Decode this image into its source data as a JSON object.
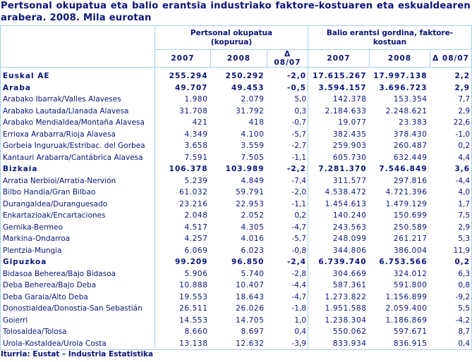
{
  "title": {
    "line1": "Pertsonal okupatua eta balio erantsia industriako faktore-kostuaren eta eskualdearen",
    "line2": "arabera. 2008. Mila eurotan"
  },
  "table": {
    "group_headers": [
      {
        "line1": "Pertsonal okupatua",
        "line2": "(kopurua)"
      },
      {
        "line1": "Balio erantsi gordina, faktore-kostuan",
        "line2": ""
      }
    ],
    "sub_headers": [
      "2007",
      "2008",
      "Δ 08/07",
      "2007",
      "2008",
      "Δ 08/07"
    ],
    "rows": [
      {
        "label": "Euskal AE",
        "bold": true,
        "values": [
          "255.294",
          "250.292",
          "-2,0",
          "17.615.267",
          "17.997.138",
          "2,2"
        ]
      },
      {
        "label": "Araba",
        "bold": true,
        "values": [
          "49.707",
          "49.453",
          "-0,5",
          "3.594.157",
          "3.696.723",
          "2,9"
        ]
      },
      {
        "label": "Arabako Ibarrak/Valles Alaveses",
        "bold": false,
        "values": [
          "1.980",
          "2.079",
          "5,0",
          "142.378",
          "153.354",
          "7,7"
        ]
      },
      {
        "label": "Arabako Lautada/Llanada Alavesa",
        "bold": false,
        "values": [
          "31.708",
          "31.792",
          "0,3",
          "2.184.633",
          "2.248.621",
          "2,9"
        ]
      },
      {
        "label": "Arabako Mendialdea/Montaña Alavesa",
        "bold": false,
        "values": [
          "421",
          "418",
          "-0,7",
          "19.077",
          "23.383",
          "22,6"
        ]
      },
      {
        "label": "Errioxa Arabarra/Rioja Alavesa",
        "bold": false,
        "values": [
          "4.349",
          "4.100",
          "-5,7",
          "382.435",
          "378.430",
          "-1,0"
        ]
      },
      {
        "label": "Gorbeia Inguruak/Estribac. del Gorbea",
        "bold": false,
        "values": [
          "3.658",
          "3.559",
          "-2,7",
          "259.903",
          "260.487",
          "0,2"
        ]
      },
      {
        "label": "Kantauri Arabarra/Cantábrica Alavesa",
        "bold": false,
        "values": [
          "7.591",
          "7.505",
          "-1,1",
          "605.730",
          "632.449",
          "4,4"
        ]
      },
      {
        "label": "Bizkaia",
        "bold": true,
        "values": [
          "106.378",
          "103.989",
          "-2,2",
          "7.281.370",
          "7.546.849",
          "3,6"
        ]
      },
      {
        "label": "Arratia Nerbioi/Arratia-Nervión",
        "bold": false,
        "values": [
          "5.239",
          "4.849",
          "-7,4",
          "311.577",
          "297.816",
          "-4,4"
        ]
      },
      {
        "label": "Bilbo Handia/Gran Bilbao",
        "bold": false,
        "values": [
          "61.032",
          "59.791",
          "-2,0",
          "4.538.472",
          "4.721.396",
          "4,0"
        ]
      },
      {
        "label": "Durangaldea/Duranguesado",
        "bold": false,
        "values": [
          "23.216",
          "22.953",
          "-1,1",
          "1.454.613",
          "1.479.129",
          "1,7"
        ]
      },
      {
        "label": "Enkartazioak/Encartaciones",
        "bold": false,
        "values": [
          "2.048",
          "2.052",
          "0,2",
          "140.240",
          "150.699",
          "7,5"
        ]
      },
      {
        "label": "Gernika-Bermeo",
        "bold": false,
        "values": [
          "4.517",
          "4.305",
          "-4,7",
          "243.563",
          "250.589",
          "2,9"
        ]
      },
      {
        "label": "Markina-Ondarroa",
        "bold": false,
        "values": [
          "4.257",
          "4.016",
          "-5,7",
          "248.099",
          "261.217",
          "5,3"
        ]
      },
      {
        "label": "Plentzia-Mungia",
        "bold": false,
        "values": [
          "6.069",
          "6.023",
          "-0,8",
          "344.806",
          "386.004",
          "11,9"
        ]
      },
      {
        "label": "Gipuzkoa",
        "bold": true,
        "values": [
          "99.209",
          "96.850",
          "-2,4",
          "6.739.740",
          "6.753.566",
          "0,2"
        ]
      },
      {
        "label": "Bidasoa Beherea/Bajo Bidasoa",
        "bold": false,
        "values": [
          "5.906",
          "5.740",
          "-2,8",
          "304.669",
          "324.012",
          "6,3"
        ]
      },
      {
        "label": "Deba Beherea/Bajo Deba",
        "bold": false,
        "values": [
          "10.888",
          "10.407",
          "-4,4",
          "587.361",
          "591.800",
          "0,8"
        ]
      },
      {
        "label": "Deba Garaia/Alto Deba",
        "bold": false,
        "values": [
          "19.553",
          "18.643",
          "-4,7",
          "1.273.822",
          "1.156.899",
          "-9,2"
        ]
      },
      {
        "label": "Donostialdea/Donostia-San Sebastián",
        "bold": false,
        "values": [
          "26.511",
          "26.026",
          "-1,8",
          "1.951.588",
          "2.059.400",
          "5,5"
        ]
      },
      {
        "label": "Goierri",
        "bold": false,
        "values": [
          "14.553",
          "14.705",
          "1,0",
          "1.238.304",
          "1.186.869",
          "-4,2"
        ]
      },
      {
        "label": "Tolosaldea/Tolosa",
        "bold": false,
        "values": [
          "8.660",
          "8.697",
          "0,4",
          "550.062",
          "597.671",
          "8,7"
        ]
      },
      {
        "label": "Urola-Kostaldea/Urola Costa",
        "bold": false,
        "values": [
          "13.138",
          "12.632",
          "-3,9",
          "833.934",
          "836.915",
          "0,4"
        ]
      }
    ]
  },
  "footer": {
    "source": "Iturria: Eustat – Industria Estatistika"
  },
  "colors": {
    "text": "#0a1478",
    "border": "#a8cdf0",
    "background": "#ffffff"
  }
}
